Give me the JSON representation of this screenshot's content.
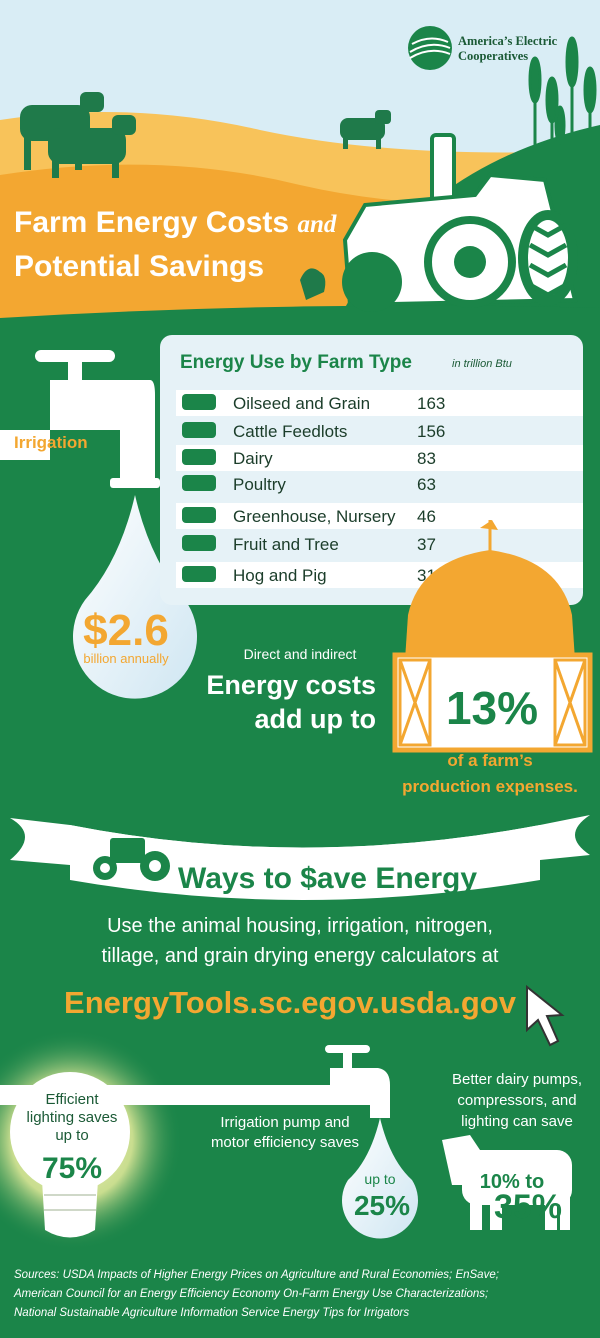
{
  "header": {
    "logo_line1": "America’s Electric",
    "logo_line2": "Cooperatives",
    "title_line1": "Farm Energy Costs",
    "title_and": "and",
    "title_line2": "Potential Savings"
  },
  "irrigation": {
    "label": "Irrigation",
    "amount": "$2.6",
    "amount_note": "billion annually"
  },
  "table": {
    "title": "Energy Use by Farm Type",
    "unit": "in trillion Btu",
    "rows": [
      [
        "Oilseed and Grain",
        163
      ],
      [
        "Cattle Feedlots",
        156
      ],
      [
        "Dairy",
        83
      ],
      [
        "Poultry",
        63
      ],
      [
        "Greenhouse, Nursery",
        46
      ],
      [
        "Fruit and Tree",
        37
      ],
      [
        "Hog and Pig",
        31
      ]
    ]
  },
  "costs": {
    "intro": "Direct and indirect",
    "line1": "Energy costs",
    "line2": "add up to",
    "percent": "13%",
    "note1": "of a farm’s",
    "note2": "production expenses."
  },
  "ways": {
    "title": "Ways to $ave Energy",
    "line1": "Use the animal housing, irrigation, nitrogen,",
    "line2": "tillage, and grain drying energy calculators at",
    "url": "EnergyTools.sc.egov.usda.gov"
  },
  "tips": {
    "lighting": {
      "lines": [
        "Efficient",
        "lighting saves",
        "up to"
      ],
      "value": "75%"
    },
    "irrigation": {
      "lines": [
        "Irrigation pump and",
        "motor efficiency saves"
      ],
      "prefix": "up to",
      "value": "25%"
    },
    "dairy": {
      "lines": [
        "Better dairy pumps,",
        "compressors, and",
        "lighting can save"
      ],
      "value_from": "10% to",
      "value_to": "35%"
    }
  },
  "sources": [
    "Sources:  USDA Impacts of Higher Energy Prices on Agriculture and Rural Economies; EnSave;",
    "American Council for an Energy Efficiency Economy On-Farm Energy Use Characterizations;",
    "National Sustainable Agriculture Information Service Energy Tips for Irrigators"
  ]
}
